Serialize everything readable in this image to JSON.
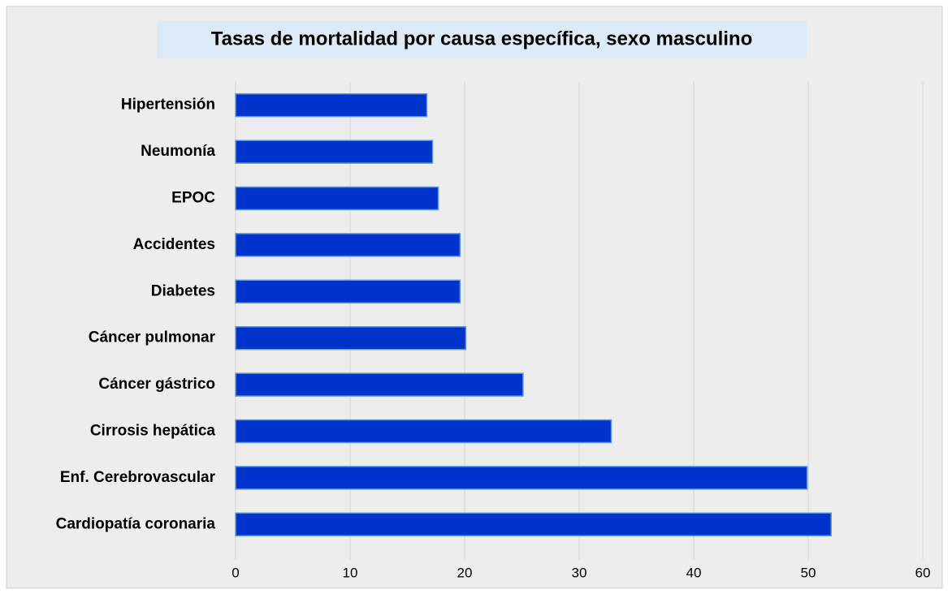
{
  "chart_data": {
    "type": "barh",
    "title": "Tasas de mortalidad por causa específica, sexo masculino",
    "categories": [
      "Hipertensión",
      "Neumonía",
      "EPOC",
      "Accidentes",
      "Diabetes",
      "Cáncer pulmonar",
      "Cáncer gástrico",
      "Cirrosis hepática",
      "Enf. Cerebrovascular",
      "Cardiopatía coronaria"
    ],
    "values": [
      16.7,
      17.2,
      17.7,
      19.6,
      19.6,
      20.1,
      25.1,
      32.8,
      49.9,
      52.0
    ],
    "color": "#0033cc",
    "xlim": [
      0,
      60
    ],
    "xticks": [
      0,
      10,
      20,
      30,
      40,
      50,
      60
    ],
    "grid": true
  }
}
